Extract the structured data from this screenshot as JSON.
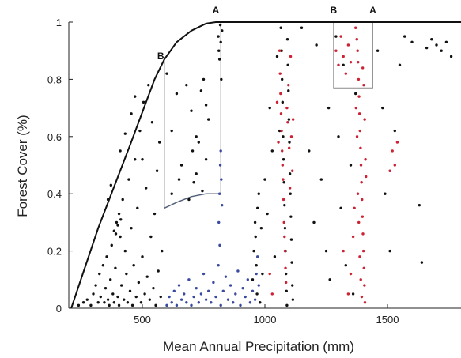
{
  "chart_data": {
    "type": "scatter",
    "title": "",
    "xlabel": "Mean Annual Precipitation (mm)",
    "ylabel": "Forest Cover (%)",
    "xlim": [
      200,
      1800
    ],
    "ylim": [
      0,
      1
    ],
    "x_ticks": [
      500,
      1000,
      1500
    ],
    "y_ticks": [
      0,
      0.2,
      0.4,
      0.6,
      0.8,
      1
    ],
    "x_tick_labels": [
      "500",
      "1000",
      "1500"
    ],
    "y_tick_labels": [
      "0",
      "0.2",
      "0.4",
      "0.6",
      "0.8",
      "1"
    ],
    "grid": false,
    "colors": {
      "black": "#111111",
      "blue": "#3a4aa0",
      "red": "#cc2233",
      "guide": "#8a8a8a"
    },
    "envelope": {
      "x": [
        210,
        320,
        450,
        550,
        590,
        640,
        700,
        760,
        800,
        1800
      ],
      "y": [
        0.0,
        0.28,
        0.57,
        0.8,
        0.87,
        0.93,
        0.97,
        0.995,
        1.0,
        1.0
      ]
    },
    "guides": {
      "left_box": {
        "x": [
          590,
          820
        ],
        "y": [
          0.35,
          1.0
        ]
      },
      "left_curve": {
        "x": [
          590,
          640,
          700,
          760,
          820
        ],
        "y": [
          0.35,
          0.37,
          0.39,
          0.4,
          0.4
        ]
      },
      "right_box": {
        "x": [
          1280,
          1440
        ],
        "y": [
          0.77,
          1.0
        ]
      }
    },
    "annotations": [
      {
        "text": "A",
        "x": 800,
        "y": 1.03
      },
      {
        "text": "B",
        "x": 575,
        "y": 0.87
      },
      {
        "text": "B",
        "x": 1280,
        "y": 1.03
      },
      {
        "text": "A",
        "x": 1440,
        "y": 1.03
      }
    ],
    "series": [
      {
        "color": "black",
        "points": [
          [
            240,
            0.01
          ],
          [
            260,
            0.02
          ],
          [
            275,
            0.03
          ],
          [
            290,
            0.01
          ],
          [
            300,
            0.05
          ],
          [
            310,
            0.08
          ],
          [
            320,
            0.02
          ],
          [
            325,
            0.12
          ],
          [
            330,
            0.04
          ],
          [
            340,
            0.15
          ],
          [
            345,
            0.02
          ],
          [
            350,
            0.07
          ],
          [
            355,
            0.18
          ],
          [
            360,
            0.03
          ],
          [
            365,
            0.01
          ],
          [
            370,
            0.1
          ],
          [
            375,
            0.22
          ],
          [
            380,
            0.05
          ],
          [
            385,
            0.02
          ],
          [
            390,
            0.14
          ],
          [
            395,
            0.3
          ],
          [
            400,
            0.04
          ],
          [
            405,
            0.01
          ],
          [
            410,
            0.25
          ],
          [
            415,
            0.08
          ],
          [
            420,
            0.38
          ],
          [
            425,
            0.03
          ],
          [
            430,
            0.2
          ],
          [
            435,
            0.12
          ],
          [
            440,
            0.02
          ],
          [
            445,
            0.45
          ],
          [
            450,
            0.06
          ],
          [
            455,
            0.28
          ],
          [
            460,
            0.01
          ],
          [
            465,
            0.15
          ],
          [
            470,
            0.52
          ],
          [
            475,
            0.04
          ],
          [
            480,
            0.35
          ],
          [
            485,
            0.09
          ],
          [
            490,
            0.62
          ],
          [
            495,
            0.02
          ],
          [
            500,
            0.18
          ],
          [
            505,
            0.72
          ],
          [
            510,
            0.05
          ],
          [
            515,
            0.42
          ],
          [
            520,
            0.11
          ],
          [
            525,
            0.78
          ],
          [
            530,
            0.03
          ],
          [
            535,
            0.25
          ],
          [
            540,
            0.65
          ],
          [
            545,
            0.07
          ],
          [
            550,
            0.33
          ],
          [
            555,
            0.01
          ],
          [
            560,
            0.48
          ],
          [
            565,
            0.13
          ],
          [
            570,
            0.58
          ],
          [
            575,
            0.04
          ],
          [
            580,
            0.2
          ],
          [
            385,
            0.27
          ],
          [
            392,
            0.26
          ],
          [
            400,
            0.29
          ],
          [
            405,
            0.33
          ],
          [
            412,
            0.31
          ],
          [
            360,
            0.38
          ],
          [
            372,
            0.43
          ],
          [
            410,
            0.55
          ],
          [
            455,
            0.68
          ],
          [
            470,
            0.74
          ],
          [
            430,
            0.61
          ],
          [
            500,
            0.52
          ],
          [
            620,
            0.62
          ],
          [
            640,
            0.75
          ],
          [
            660,
            0.5
          ],
          [
            680,
            0.78
          ],
          [
            700,
            0.69
          ],
          [
            720,
            0.6
          ],
          [
            740,
            0.76
          ],
          [
            760,
            0.52
          ],
          [
            650,
            0.45
          ],
          [
            690,
            0.38
          ],
          [
            710,
            0.44
          ],
          [
            730,
            0.58
          ],
          [
            750,
            0.8
          ],
          [
            770,
            0.66
          ],
          [
            600,
            0.82
          ],
          [
            720,
            0.47
          ],
          [
            760,
            0.71
          ],
          [
            620,
            0.4
          ],
          [
            705,
            0.55
          ],
          [
            745,
            0.41
          ]
        ]
      },
      {
        "color": "blue",
        "points": [
          [
            600,
            0.01
          ],
          [
            610,
            0.04
          ],
          [
            620,
            0.02
          ],
          [
            630,
            0.06
          ],
          [
            640,
            0.01
          ],
          [
            650,
            0.08
          ],
          [
            660,
            0.03
          ],
          [
            670,
            0.05
          ],
          [
            680,
            0.02
          ],
          [
            690,
            0.1
          ],
          [
            700,
            0.01
          ],
          [
            710,
            0.04
          ],
          [
            720,
            0.07
          ],
          [
            730,
            0.02
          ],
          [
            740,
            0.05
          ],
          [
            750,
            0.12
          ],
          [
            760,
            0.03
          ],
          [
            770,
            0.06
          ],
          [
            780,
            0.02
          ],
          [
            790,
            0.09
          ],
          [
            800,
            0.04
          ],
          [
            810,
            0.15
          ],
          [
            820,
            0.01
          ],
          [
            830,
            0.06
          ],
          [
            840,
            0.11
          ],
          [
            850,
            0.03
          ],
          [
            860,
            0.08
          ],
          [
            870,
            0.02
          ],
          [
            880,
            0.05
          ],
          [
            890,
            0.13
          ],
          [
            900,
            0.01
          ],
          [
            910,
            0.07
          ],
          [
            920,
            0.04
          ],
          [
            930,
            0.1
          ],
          [
            940,
            0.02
          ],
          [
            950,
            0.06
          ],
          [
            960,
            0.03
          ],
          [
            965,
            0.12
          ],
          [
            970,
            0.18
          ],
          [
            975,
            0.08
          ],
          [
            815,
            0.4
          ],
          [
            818,
            0.5
          ],
          [
            820,
            0.55
          ],
          [
            822,
            0.45
          ],
          [
            825,
            0.36
          ],
          [
            812,
            0.3
          ],
          [
            816,
            0.22
          ]
        ]
      },
      {
        "color": "black",
        "points": [
          [
            810,
            0.95
          ],
          [
            812,
            0.9
          ],
          [
            815,
            0.87
          ],
          [
            818,
            0.99
          ],
          [
            820,
            0.93
          ],
          [
            822,
            0.8
          ],
          [
            825,
            0.97
          ],
          [
            950,
            0.1
          ],
          [
            955,
            0.2
          ],
          [
            960,
            0.3
          ],
          [
            962,
            0.25
          ],
          [
            965,
            0.15
          ],
          [
            968,
            0.05
          ],
          [
            970,
            0.35
          ],
          [
            975,
            0.4
          ],
          [
            980,
            0.02
          ],
          [
            985,
            0.28
          ],
          [
            990,
            0.12
          ],
          [
            1000,
            0.45
          ],
          [
            1010,
            0.33
          ],
          [
            1020,
            0.7
          ],
          [
            1030,
            0.55
          ],
          [
            1040,
            0.18
          ],
          [
            1050,
            0.88
          ],
          [
            1060,
            0.62
          ],
          [
            1065,
            0.98
          ],
          [
            1068,
            0.9
          ],
          [
            1070,
            0.8
          ],
          [
            1072,
            0.72
          ],
          [
            1074,
            0.6
          ],
          [
            1076,
            0.52
          ],
          [
            1078,
            0.44
          ],
          [
            1080,
            0.36
          ],
          [
            1082,
            0.28
          ],
          [
            1084,
            0.2
          ],
          [
            1086,
            0.12
          ],
          [
            1088,
            0.06
          ],
          [
            1090,
            0.01
          ],
          [
            1092,
            0.94
          ],
          [
            1094,
            0.85
          ],
          [
            1096,
            0.76
          ],
          [
            1098,
            0.66
          ],
          [
            1100,
            0.58
          ],
          [
            1102,
            0.47
          ],
          [
            1104,
            0.4
          ],
          [
            1106,
            0.32
          ],
          [
            1108,
            0.24
          ],
          [
            1110,
            0.16
          ],
          [
            1112,
            0.08
          ],
          [
            1114,
            0.03
          ],
          [
            1150,
            0.98
          ],
          [
            1180,
            0.55
          ],
          [
            1200,
            0.3
          ],
          [
            1210,
            0.92
          ],
          [
            1230,
            0.45
          ],
          [
            1250,
            0.2
          ],
          [
            1260,
            0.7
          ],
          [
            1265,
            0.1
          ],
          [
            1290,
            0.95
          ],
          [
            1300,
            0.6
          ],
          [
            1310,
            0.35
          ],
          [
            1320,
            0.85
          ],
          [
            1330,
            0.15
          ],
          [
            1350,
            0.5
          ],
          [
            1360,
            0.05
          ],
          [
            1370,
            0.75
          ],
          [
            1460,
            0.9
          ],
          [
            1480,
            0.7
          ],
          [
            1490,
            0.4
          ],
          [
            1510,
            0.2
          ],
          [
            1530,
            0.62
          ],
          [
            1550,
            0.85
          ],
          [
            1570,
            0.95
          ],
          [
            1600,
            0.93
          ],
          [
            1630,
            0.36
          ],
          [
            1640,
            0.16
          ],
          [
            1660,
            0.91
          ],
          [
            1680,
            0.94
          ],
          [
            1700,
            0.92
          ],
          [
            1720,
            0.9
          ],
          [
            1740,
            0.93
          ],
          [
            1760,
            0.88
          ]
        ]
      },
      {
        "color": "red",
        "points": [
          [
            1060,
            0.9
          ],
          [
            1062,
            0.82
          ],
          [
            1064,
            0.75
          ],
          [
            1066,
            0.68
          ],
          [
            1068,
            0.62
          ],
          [
            1070,
            0.55
          ],
          [
            1072,
            0.5
          ],
          [
            1074,
            0.45
          ],
          [
            1076,
            0.38
          ],
          [
            1078,
            0.3
          ],
          [
            1080,
            0.25
          ],
          [
            1082,
            0.2
          ],
          [
            1084,
            0.14
          ],
          [
            1086,
            0.09
          ],
          [
            1090,
            0.7
          ],
          [
            1093,
            0.65
          ],
          [
            1096,
            0.78
          ],
          [
            1099,
            0.56
          ],
          [
            1102,
            0.42
          ],
          [
            1105,
            0.88
          ],
          [
            1108,
            0.6
          ],
          [
            1112,
            0.48
          ],
          [
            1050,
            0.72
          ],
          [
            1055,
            0.58
          ],
          [
            1115,
            0.66
          ],
          [
            1020,
            0.12
          ],
          [
            1030,
            0.05
          ],
          [
            1290,
            0.9
          ],
          [
            1300,
            0.85
          ],
          [
            1310,
            0.95
          ],
          [
            1320,
            0.88
          ],
          [
            1330,
            0.82
          ],
          [
            1340,
            0.92
          ],
          [
            1350,
            0.86
          ],
          [
            1370,
            0.98
          ],
          [
            1375,
            0.94
          ],
          [
            1378,
            0.9
          ],
          [
            1380,
            0.86
          ],
          [
            1382,
            0.8
          ],
          [
            1384,
            0.74
          ],
          [
            1386,
            0.68
          ],
          [
            1388,
            0.62
          ],
          [
            1390,
            0.56
          ],
          [
            1392,
            0.5
          ],
          [
            1394,
            0.44
          ],
          [
            1396,
            0.38
          ],
          [
            1398,
            0.32
          ],
          [
            1400,
            0.26
          ],
          [
            1402,
            0.2
          ],
          [
            1404,
            0.14
          ],
          [
            1406,
            0.08
          ],
          [
            1408,
            0.02
          ],
          [
            1372,
            0.7
          ],
          [
            1376,
            0.6
          ],
          [
            1379,
            0.4
          ],
          [
            1383,
            0.3
          ],
          [
            1387,
            0.18
          ],
          [
            1391,
            0.1
          ],
          [
            1395,
            0.04
          ],
          [
            1399,
            0.84
          ],
          [
            1403,
            0.78
          ],
          [
            1407,
            0.66
          ],
          [
            1410,
            0.52
          ],
          [
            1412,
            0.46
          ],
          [
            1360,
            0.25
          ],
          [
            1350,
            0.12
          ],
          [
            1340,
            0.05
          ],
          [
            1320,
            0.2
          ],
          [
            1365,
            0.35
          ],
          [
            1520,
            0.55
          ],
          [
            1530,
            0.5
          ],
          [
            1540,
            0.58
          ],
          [
            1510,
            0.48
          ]
        ]
      }
    ]
  }
}
